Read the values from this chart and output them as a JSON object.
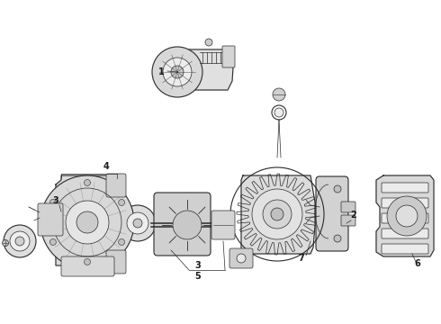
{
  "background_color": "#ffffff",
  "line_color": "#2a2a2a",
  "label_color": "#1a1a1a",
  "fig_width": 4.9,
  "fig_height": 3.6,
  "dpi": 100
}
